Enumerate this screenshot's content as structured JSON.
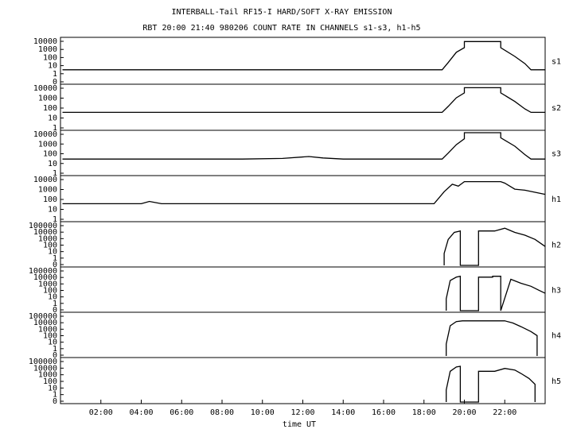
{
  "chart_data": {
    "type": "line",
    "title": "INTERBALL-Tail RF15-I HARD/SOFT X-RAY EMISSION",
    "subtitle": "RBT 20:00 21:40 980206  COUNT RATE IN CHANNELS s1-s3, h1-h5",
    "xlabel": "time UT",
    "x_ticks": [
      "02:00",
      "04:00",
      "06:00",
      "08:00",
      "10:00",
      "12:00",
      "14:00",
      "16:00",
      "18:00",
      "20:00",
      "22:00"
    ],
    "xlim_hours": [
      0,
      24
    ],
    "yscale": "log",
    "panels": [
      {
        "channel": "s1",
        "ylim": [
          0.1,
          10000
        ],
        "yticks": [
          "10000",
          "1000",
          "100",
          "10",
          "1",
          "0"
        ],
        "x": [
          0.1,
          3,
          5,
          8,
          12,
          15,
          18.9,
          19.2,
          19.6,
          20.0,
          20.0,
          21.0,
          21.0,
          21.8,
          21.8,
          22.5,
          23.0,
          23.3,
          24.0
        ],
        "y": [
          3,
          3,
          3,
          3,
          3,
          3,
          3,
          20,
          300,
          1000,
          5000,
          5000,
          5000,
          5000,
          1000,
          100,
          15,
          3,
          3
        ]
      },
      {
        "channel": "s2",
        "ylim": [
          0.1,
          10000
        ],
        "yticks": [
          "10000",
          "1000",
          "100",
          "10",
          "1"
        ],
        "x": [
          0.1,
          3,
          6,
          9,
          12,
          15,
          18.9,
          19.2,
          19.6,
          20.0,
          20.0,
          21.8,
          21.8,
          22.5,
          23.0,
          23.3,
          24.0
        ],
        "y": [
          8,
          8,
          8,
          8,
          8,
          8,
          8,
          40,
          400,
          1500,
          6000,
          6000,
          1500,
          150,
          20,
          8,
          8
        ]
      },
      {
        "channel": "s3",
        "ylim": [
          0.1,
          10000
        ],
        "yticks": [
          "10000",
          "1000",
          "100",
          "10",
          "1"
        ],
        "x": [
          0.1,
          3,
          6,
          9,
          11,
          12.3,
          13,
          14,
          16,
          18.9,
          19.2,
          19.6,
          20.0,
          20.0,
          21.8,
          21.8,
          22.5,
          23.0,
          23.3,
          24.0
        ],
        "y": [
          6,
          6,
          6,
          6,
          7,
          12,
          8,
          6,
          6,
          6,
          30,
          300,
          1500,
          8000,
          8000,
          2000,
          200,
          20,
          6,
          6
        ]
      },
      {
        "channel": "h1",
        "ylim": [
          0.1,
          10000
        ],
        "yticks": [
          "10000",
          "1000",
          "100",
          "10",
          "1"
        ],
        "x": [
          0.1,
          3,
          4.0,
          4.4,
          5,
          8,
          12,
          15,
          18.5,
          19.0,
          19.4,
          19.7,
          20.0,
          21.8,
          22.0,
          22.5,
          23.0,
          24.0
        ],
        "y": [
          8,
          8,
          8,
          15,
          8,
          8,
          8,
          8,
          8,
          200,
          1500,
          900,
          3000,
          3000,
          2000,
          400,
          300,
          100
        ]
      },
      {
        "channel": "h2",
        "ylim": [
          0.1,
          100000
        ],
        "yticks": [
          "100000",
          "10000",
          "1000",
          "100",
          "10",
          "1",
          "0"
        ],
        "x": [
          19.0,
          19.0,
          19.2,
          19.5,
          19.8,
          19.8,
          20.7,
          20.7,
          21.5,
          22.0,
          22.5,
          23.0,
          23.5,
          24.0
        ],
        "y": [
          0.1,
          5,
          500,
          5000,
          8000,
          0.1,
          0.1,
          8000,
          8000,
          20000,
          5000,
          2000,
          500,
          50
        ]
      },
      {
        "channel": "h3",
        "ylim": [
          0.1,
          100000
        ],
        "yticks": [
          "100000",
          "10000",
          "1000",
          "100",
          "10",
          "1",
          "0"
        ],
        "x": [
          19.1,
          19.1,
          19.3,
          19.6,
          19.8,
          19.8,
          20.7,
          20.7,
          21.4,
          21.4,
          21.8,
          21.8,
          22.3,
          22.8,
          23.3,
          23.7,
          24.0
        ],
        "y": [
          0.1,
          5,
          2000,
          6000,
          8000,
          0.1,
          0.1,
          6000,
          6000,
          8000,
          8000,
          0.1,
          3000,
          800,
          300,
          80,
          30
        ]
      },
      {
        "channel": "h4",
        "ylim": [
          0.1,
          100000
        ],
        "yticks": [
          "100000",
          "10000",
          "1000",
          "100",
          "10",
          "1",
          "0"
        ],
        "x": [
          19.1,
          19.1,
          19.3,
          19.6,
          19.9,
          20.3,
          21.0,
          21.5,
          22.0,
          22.4,
          22.8,
          23.3,
          23.6,
          23.6
        ],
        "y": [
          0.1,
          5,
          2000,
          8000,
          10000,
          10000,
          10000,
          10000,
          10000,
          5000,
          1500,
          300,
          80,
          0.1
        ]
      },
      {
        "channel": "h5",
        "ylim": [
          0.1,
          100000
        ],
        "yticks": [
          "100000",
          "10000",
          "1000",
          "100",
          "10",
          "1",
          "0"
        ],
        "x": [
          19.1,
          19.1,
          19.3,
          19.6,
          19.8,
          19.8,
          20.7,
          20.7,
          21.5,
          22.0,
          22.5,
          22.8,
          23.2,
          23.5,
          23.5
        ],
        "y": [
          0.1,
          5,
          2000,
          8000,
          10000,
          0.1,
          0.1,
          2000,
          2000,
          5000,
          3000,
          1000,
          200,
          30,
          0.1
        ]
      }
    ]
  }
}
